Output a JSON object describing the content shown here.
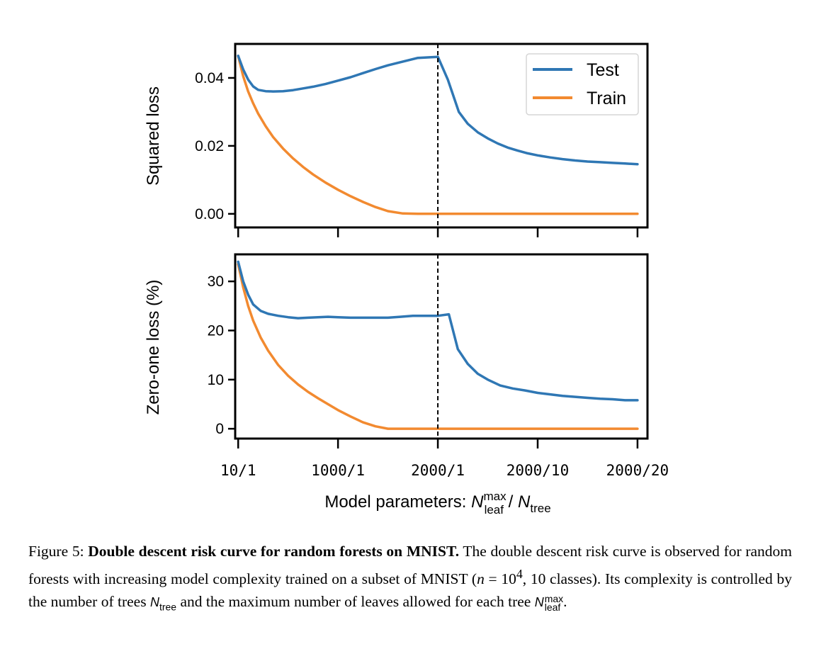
{
  "chart_data": [
    {
      "type": "line",
      "panel": "top",
      "ylabel": "Squared loss",
      "ylim": [
        -0.004,
        0.05
      ],
      "yticks": [
        0.0,
        0.02,
        0.04
      ],
      "ytick_labels": [
        "0.00",
        "0.02",
        "0.04"
      ],
      "xlim": [
        -0.06,
        8.2
      ],
      "legend": {
        "position": "top-right",
        "entries": [
          "Test",
          "Train"
        ]
      },
      "vline_x": 4.0,
      "series": [
        {
          "name": "Test",
          "color": "#2f77b4",
          "x": [
            0.0,
            0.1,
            0.2,
            0.3,
            0.4,
            0.55,
            0.7,
            0.9,
            1.1,
            1.3,
            1.5,
            1.75,
            2.0,
            2.25,
            2.5,
            2.75,
            3.0,
            3.3,
            3.6,
            4.0,
            4.2,
            4.42,
            4.6,
            4.8,
            5.0,
            5.2,
            5.4,
            5.6,
            5.8,
            6.0,
            6.25,
            6.5,
            6.75,
            7.0,
            7.25,
            7.5,
            7.75,
            8.0
          ],
          "y": [
            0.0465,
            0.0425,
            0.0395,
            0.0375,
            0.0365,
            0.0361,
            0.036,
            0.0361,
            0.0364,
            0.0369,
            0.0374,
            0.0382,
            0.0392,
            0.0402,
            0.0414,
            0.0426,
            0.0437,
            0.0448,
            0.0459,
            0.0462,
            0.0395,
            0.03,
            0.0265,
            0.024,
            0.0222,
            0.0207,
            0.0195,
            0.0186,
            0.0178,
            0.0172,
            0.0166,
            0.0161,
            0.0157,
            0.0154,
            0.0152,
            0.015,
            0.0148,
            0.0146
          ]
        },
        {
          "name": "Train",
          "color": "#f28a30",
          "x": [
            0.0,
            0.1,
            0.2,
            0.3,
            0.4,
            0.55,
            0.7,
            0.9,
            1.1,
            1.3,
            1.5,
            1.75,
            2.0,
            2.25,
            2.5,
            2.75,
            3.0,
            3.3,
            3.6,
            4.0,
            4.5,
            5.0,
            6.0,
            7.0,
            8.0
          ],
          "y": [
            0.0465,
            0.0405,
            0.036,
            0.0325,
            0.0295,
            0.0258,
            0.0226,
            0.0192,
            0.0163,
            0.0138,
            0.0116,
            0.0092,
            0.0071,
            0.0052,
            0.0035,
            0.002,
            0.0008,
            0.0001,
            0.0,
            0.0,
            0.0,
            0.0,
            0.0,
            0.0,
            0.0
          ]
        }
      ]
    },
    {
      "type": "line",
      "panel": "bottom",
      "ylabel": "Zero-one loss (%)",
      "ylim": [
        -2.0,
        35.5
      ],
      "yticks": [
        0,
        10,
        20,
        30
      ],
      "ytick_labels": [
        "0",
        "10",
        "20",
        "30"
      ],
      "xlim": [
        -0.06,
        8.2
      ],
      "xticks": [
        0.0,
        2.0,
        4.0,
        6.0,
        8.0
      ],
      "xtick_labels": [
        "10/1",
        "1000/1",
        "2000/1",
        "2000/10",
        "2000/20"
      ],
      "vline_x": 4.0,
      "series": [
        {
          "name": "Test",
          "color": "#2f77b4",
          "x": [
            0.0,
            0.1,
            0.2,
            0.3,
            0.45,
            0.6,
            0.8,
            1.0,
            1.2,
            1.4,
            1.6,
            1.8,
            2.0,
            2.25,
            2.5,
            2.75,
            3.0,
            3.25,
            3.5,
            3.75,
            4.0,
            4.22,
            4.4,
            4.6,
            4.8,
            5.0,
            5.25,
            5.5,
            5.75,
            6.0,
            6.25,
            6.5,
            6.75,
            7.0,
            7.25,
            7.5,
            7.75,
            8.0
          ],
          "y": [
            34.0,
            30.0,
            27.3,
            25.3,
            24.0,
            23.4,
            23.0,
            22.7,
            22.5,
            22.6,
            22.7,
            22.8,
            22.7,
            22.6,
            22.6,
            22.6,
            22.6,
            22.8,
            23.0,
            23.0,
            23.0,
            23.3,
            16.2,
            13.2,
            11.2,
            10.0,
            8.8,
            8.2,
            7.8,
            7.3,
            7.0,
            6.7,
            6.5,
            6.3,
            6.1,
            6.0,
            5.8,
            5.8
          ]
        },
        {
          "name": "Train",
          "color": "#f28a30",
          "x": [
            0.0,
            0.1,
            0.2,
            0.3,
            0.45,
            0.6,
            0.8,
            1.0,
            1.2,
            1.4,
            1.6,
            1.8,
            2.0,
            2.25,
            2.5,
            2.75,
            3.0,
            3.25,
            3.5,
            3.75,
            4.0,
            5.0,
            6.0,
            7.0,
            8.0
          ],
          "y": [
            33.5,
            28.8,
            25.0,
            22.0,
            18.6,
            15.9,
            13.0,
            10.8,
            9.0,
            7.5,
            6.2,
            5.0,
            3.8,
            2.5,
            1.3,
            0.5,
            0.0,
            0.0,
            0.0,
            0.0,
            0.0,
            0.0,
            0.0,
            0.0,
            0.0
          ]
        }
      ]
    }
  ],
  "xlabel": {
    "prefix": "Model parameters: ",
    "var1": "N",
    "var1_sup": "max",
    "var1_sub": "leaf",
    "separator": " / ",
    "var2": "N",
    "var2_sub": "tree"
  },
  "caption": {
    "label": "Figure 5: ",
    "title": "Double descent risk curve for random forests on MNIST.",
    "text_1": " The double descent risk curve is observed for random forests with increasing model complexity trained on a subset of MNIST (",
    "n_symbol": "n",
    "n_eq": " = 10",
    "n_exp": "4",
    "n_rest": ", 10 classes). Its complexity is controlled by the number of trees ",
    "ntree_var": "N",
    "ntree_sub": "tree",
    "text_2": " and the maximum number of leaves allowed for each tree ",
    "nleaf_var": "N",
    "nleaf_sup": "max",
    "nleaf_sub": "leaf",
    "end": "."
  }
}
